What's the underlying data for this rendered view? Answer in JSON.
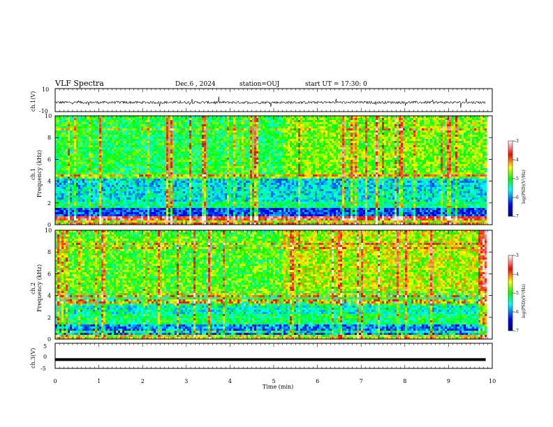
{
  "header": {
    "title": "VLF Spectra",
    "date": "Dec.6 , 2024",
    "station": "station=OUJ",
    "start": "start UT = 17:30: 0"
  },
  "chart_data": [
    {
      "type": "line",
      "panel": "ch1-waveform",
      "ylabel": "ch.1(V)",
      "yticks": [
        "10",
        "-10"
      ],
      "ylim": [
        -10,
        10
      ],
      "x_range_min": [
        0,
        9.85
      ],
      "values_note_mean": -2,
      "trace_color": "#000000"
    },
    {
      "type": "heatmap",
      "panel": "ch1-spectrogram",
      "ylabel_top": "ch.1",
      "ylabel": "Frequency (kHz)",
      "yticks": [
        "0",
        "2",
        "4",
        "6",
        "8",
        "10"
      ],
      "ylim": [
        0,
        10
      ],
      "x_range_min": [
        0,
        9.85
      ],
      "colorbar": {
        "label": "log(PSD)(V²/Hz)",
        "ticks": [
          "-3",
          "-4",
          "-5",
          "-6",
          "-7"
        ],
        "range": [
          -7,
          -3
        ]
      },
      "bands": [
        {
          "from_khz": 0.0,
          "to_khz": 0.35,
          "level": -4.6
        },
        {
          "from_khz": 0.35,
          "to_khz": 0.7,
          "level": -3.6
        },
        {
          "from_khz": 0.7,
          "to_khz": 1.5,
          "level": -6.2
        },
        {
          "from_khz": 1.5,
          "to_khz": 2.2,
          "level": -5.3
        },
        {
          "from_khz": 2.2,
          "to_khz": 3.2,
          "level": -5.6
        },
        {
          "from_khz": 3.2,
          "to_khz": 4.3,
          "level": -5.7
        },
        {
          "from_khz": 4.3,
          "to_khz": 4.6,
          "level": -4.8
        },
        {
          "from_khz": 4.6,
          "to_khz": 10.0,
          "level": -5.1
        }
      ],
      "hf_brightening_after_min": 5.2
    },
    {
      "type": "heatmap",
      "panel": "ch2-spectrogram",
      "ylabel_top": "ch.2",
      "ylabel": "Frequency (kHz)",
      "yticks": [
        "0",
        "2",
        "4",
        "6",
        "8",
        "10"
      ],
      "ylim": [
        0,
        10
      ],
      "x_range_min": [
        0,
        9.85
      ],
      "colorbar": {
        "label": "log(PSD)(V²/Hz)",
        "ticks": [
          "-3",
          "-4",
          "-5",
          "-6",
          "-7"
        ],
        "range": [
          -7,
          -3
        ]
      },
      "bands": [
        {
          "from_khz": 0.0,
          "to_khz": 0.4,
          "level": -4.5
        },
        {
          "from_khz": 0.4,
          "to_khz": 1.3,
          "level": -6.0
        },
        {
          "from_khz": 1.3,
          "to_khz": 2.3,
          "level": -5.2
        },
        {
          "from_khz": 2.3,
          "to_khz": 3.3,
          "level": -5.5
        },
        {
          "from_khz": 3.3,
          "to_khz": 4.3,
          "level": -5.2
        },
        {
          "from_khz": 4.3,
          "to_khz": 10.0,
          "level": -4.9
        }
      ],
      "hf_brightening_after_min": 5.2
    },
    {
      "type": "line",
      "panel": "ch3-waveform",
      "ylabel": "ch.3(V)",
      "yticks": [
        "5",
        "0",
        "-5"
      ],
      "ylim": [
        -5,
        5
      ],
      "x_range_min": [
        0,
        9.85
      ],
      "constant_value": -1.5,
      "trace_color": "#000000"
    }
  ],
  "xaxis": {
    "label": "Time (min)",
    "ticks": [
      "0",
      "1",
      "2",
      "3",
      "4",
      "5",
      "6",
      "7",
      "8",
      "9",
      "10"
    ],
    "xlim": [
      0,
      10
    ]
  }
}
